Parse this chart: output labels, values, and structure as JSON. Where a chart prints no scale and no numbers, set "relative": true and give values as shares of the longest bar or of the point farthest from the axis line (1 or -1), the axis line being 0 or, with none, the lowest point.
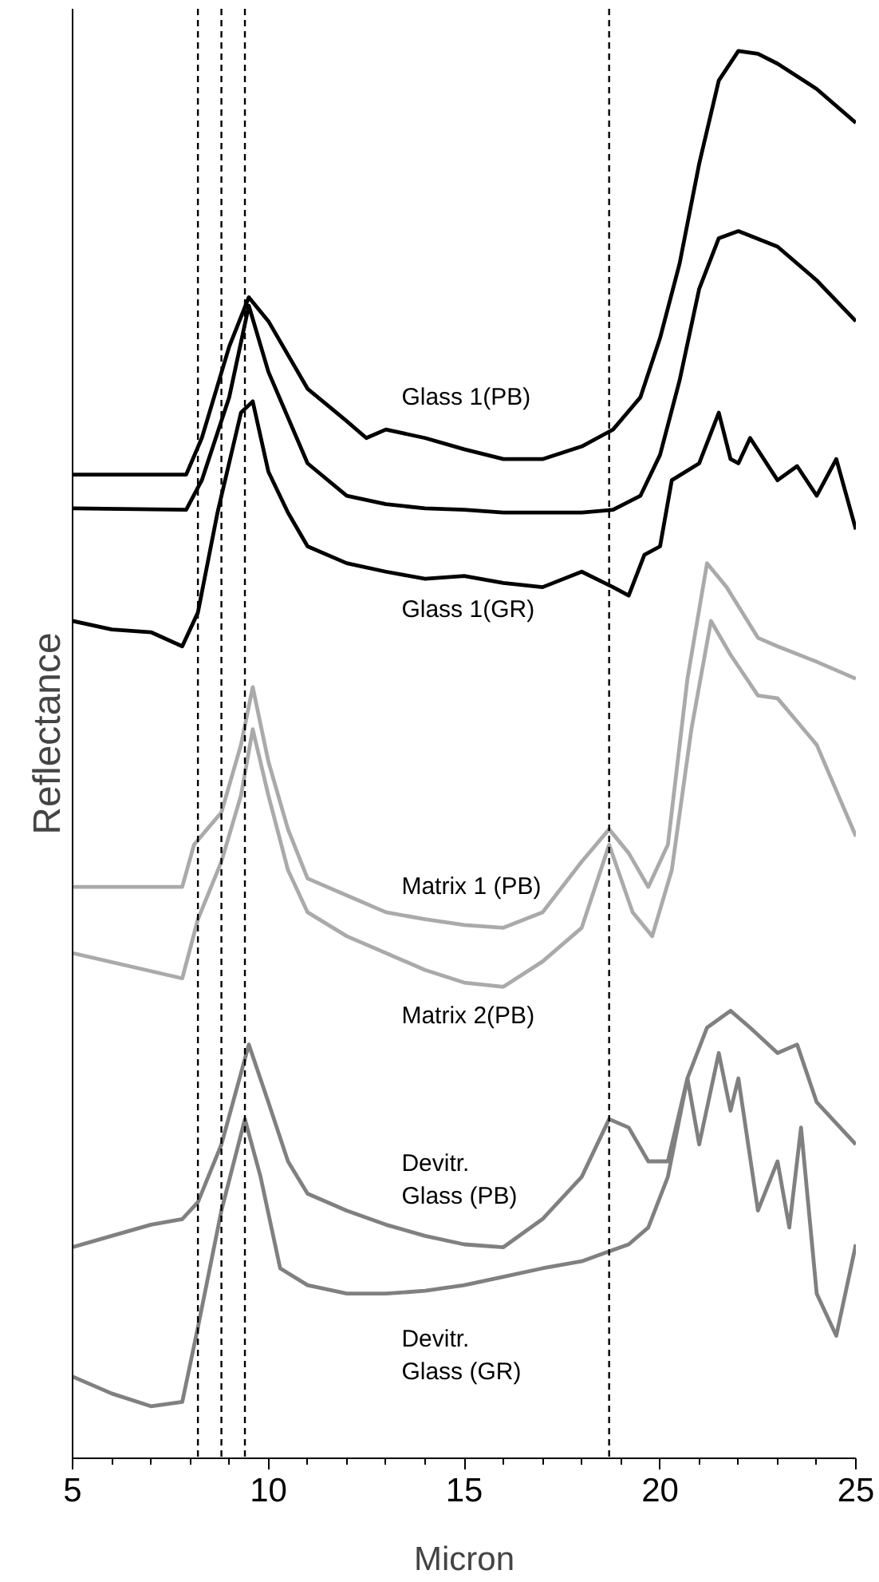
{
  "chart_data": {
    "type": "line",
    "relative": true,
    "xlabel": "Micron",
    "ylabel": "Reflectance",
    "xlim": [
      5,
      25
    ],
    "xticks": [
      5,
      10,
      15,
      20,
      25
    ],
    "tick_labels": "x",
    "grid": false,
    "legend": false,
    "marker": "none",
    "line_style": "solid",
    "ref_lines": [
      {
        "axis": "x",
        "value": 8.2,
        "label": null,
        "color": "#000000",
        "line_style": "dashed"
      },
      {
        "axis": "x",
        "value": 8.8,
        "label": null,
        "color": "#000000",
        "line_style": "dashed"
      },
      {
        "axis": "x",
        "value": 9.4,
        "label": null,
        "color": "#000000",
        "line_style": "dashed"
      },
      {
        "axis": "x",
        "value": 18.7,
        "label": null,
        "color": "#000000",
        "line_style": "dashed"
      }
    ],
    "series": [
      {
        "name": "Glass 1(PB)",
        "color": "#000000",
        "x": [
          5,
          7.9,
          8.3,
          9,
          9.5,
          10,
          11,
          12,
          12.5,
          13,
          14,
          15,
          16,
          17,
          18,
          18.8,
          19.5,
          20,
          20.5,
          21,
          21.5,
          22,
          22.5,
          23,
          24,
          25
        ],
        "values": [
          0.699,
          0.699,
          0.725,
          0.79,
          0.825,
          0.808,
          0.76,
          0.737,
          0.725,
          0.731,
          0.725,
          0.717,
          0.71,
          0.71,
          0.719,
          0.731,
          0.754,
          0.796,
          0.849,
          0.92,
          0.979,
          1.0,
          0.998,
          0.991,
          0.973,
          0.949
        ]
      },
      {
        "color": "#000000",
        "x": [
          5,
          7.9,
          8.3,
          9,
          9.5,
          10,
          11,
          12,
          13,
          14,
          15,
          16,
          17,
          18,
          18.8,
          19.5,
          20,
          20.5,
          21,
          21.5,
          22,
          23,
          24,
          25
        ],
        "values": [
          0.675,
          0.674,
          0.695,
          0.754,
          0.819,
          0.772,
          0.707,
          0.684,
          0.678,
          0.675,
          0.674,
          0.672,
          0.672,
          0.672,
          0.674,
          0.684,
          0.713,
          0.766,
          0.831,
          0.867,
          0.872,
          0.861,
          0.837,
          0.808
        ]
      },
      {
        "name": "Glass 1(GR)",
        "color": "#000000",
        "x": [
          5,
          6,
          7,
          7.8,
          8.2,
          8.7,
          9.3,
          9.6,
          10,
          10.5,
          11,
          12,
          13,
          14,
          15,
          16,
          17,
          18,
          18.8,
          19.2,
          19.6,
          20,
          20.3,
          21,
          21.5,
          21.8,
          22,
          22.3,
          23,
          23.5,
          24,
          24.5,
          25
        ],
        "values": [
          0.595,
          0.589,
          0.587,
          0.577,
          0.601,
          0.672,
          0.743,
          0.751,
          0.701,
          0.672,
          0.648,
          0.636,
          0.63,
          0.625,
          0.627,
          0.622,
          0.619,
          0.63,
          0.619,
          0.613,
          0.642,
          0.648,
          0.695,
          0.707,
          0.743,
          0.71,
          0.707,
          0.725,
          0.695,
          0.705,
          0.684,
          0.71,
          0.66
        ]
      },
      {
        "name": "Matrix 1 (PB)",
        "color": "#aaaaaa",
        "x": [
          5,
          7.8,
          8.1,
          8.8,
          9.3,
          9.6,
          10,
          10.5,
          11,
          12,
          13,
          14,
          15,
          16,
          17,
          18,
          18.7,
          19.2,
          19.7,
          20.2,
          20.7,
          21.2,
          21.7,
          22.5,
          23,
          24,
          25
        ],
        "values": [
          0.406,
          0.406,
          0.436,
          0.459,
          0.507,
          0.548,
          0.495,
          0.447,
          0.412,
          0.4,
          0.388,
          0.383,
          0.379,
          0.377,
          0.388,
          0.424,
          0.447,
          0.43,
          0.406,
          0.436,
          0.554,
          0.636,
          0.619,
          0.583,
          0.577,
          0.566,
          0.554
        ]
      },
      {
        "name": "Matrix 2(PB)",
        "color": "#aaaaaa",
        "x": [
          5,
          7.8,
          8.2,
          8.8,
          9.3,
          9.6,
          10,
          10.5,
          11,
          12,
          13,
          14,
          15,
          16,
          17,
          18,
          18.7,
          19.3,
          19.8,
          20.3,
          20.8,
          21.3,
          21.8,
          22.5,
          23,
          24,
          25
        ],
        "values": [
          0.359,
          0.341,
          0.383,
          0.424,
          0.471,
          0.518,
          0.471,
          0.418,
          0.388,
          0.371,
          0.359,
          0.347,
          0.338,
          0.335,
          0.353,
          0.377,
          0.436,
          0.388,
          0.371,
          0.418,
          0.518,
          0.595,
          0.571,
          0.542,
          0.54,
          0.507,
          0.442
        ]
      },
      {
        "name": "Devitr.\nGlass (PB)",
        "color": "#808080",
        "x": [
          5,
          6,
          7,
          7.8,
          8.2,
          8.8,
          9.5,
          10,
          10.5,
          11,
          12,
          13,
          14,
          15,
          16,
          17,
          18,
          18.7,
          19.2,
          19.7,
          20.2,
          20.7,
          21.2,
          21.8,
          22.3,
          23,
          23.5,
          24,
          25
        ],
        "values": [
          0.15,
          0.158,
          0.166,
          0.17,
          0.182,
          0.223,
          0.294,
          0.253,
          0.211,
          0.188,
          0.176,
          0.166,
          0.158,
          0.152,
          0.15,
          0.17,
          0.2,
          0.241,
          0.235,
          0.211,
          0.211,
          0.27,
          0.306,
          0.318,
          0.306,
          0.288,
          0.294,
          0.253,
          0.223
        ]
      },
      {
        "name": "Devitr.\nGlass (GR)",
        "color": "#808080",
        "x": [
          5,
          6,
          7,
          7.8,
          8.2,
          8.8,
          9.4,
          9.8,
          10.3,
          11,
          12,
          13,
          14,
          15,
          16,
          17,
          18,
          18.6,
          19.2,
          19.7,
          20.2,
          20.7,
          21,
          21.5,
          21.8,
          22,
          22.5,
          23,
          23.3,
          23.6,
          24,
          24.5,
          25
        ],
        "values": [
          0.058,
          0.046,
          0.037,
          0.04,
          0.093,
          0.176,
          0.241,
          0.2,
          0.135,
          0.123,
          0.117,
          0.117,
          0.119,
          0.123,
          0.129,
          0.135,
          0.14,
          0.146,
          0.152,
          0.164,
          0.2,
          0.27,
          0.223,
          0.288,
          0.247,
          0.27,
          0.176,
          0.211,
          0.164,
          0.235,
          0.117,
          0.087,
          0.152
        ]
      }
    ]
  }
}
